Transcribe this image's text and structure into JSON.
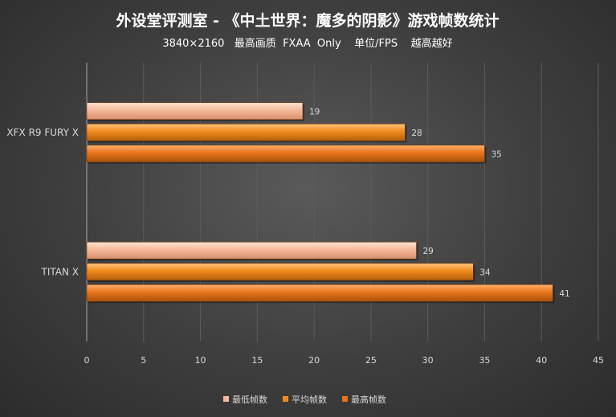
{
  "chart_data": {
    "type": "bar",
    "orientation": "horizontal",
    "title": "外设堂评测室 - 《中土世界：魔多的阴影》游戏帧数统计",
    "subtitle": "3840×2160   最高画质  FXAA  Only    单位/FPS    越高越好",
    "categories": [
      "XFX R9 FURY X",
      "TITAN X"
    ],
    "series": [
      {
        "name": "最低帧数",
        "values": [
          19,
          29
        ],
        "color": "#f4b99a"
      },
      {
        "name": "平均帧数",
        "values": [
          28,
          34
        ],
        "color": "#f08a1c"
      },
      {
        "name": "最高帧数",
        "values": [
          35,
          41
        ],
        "color": "#e8731a"
      }
    ],
    "xlim": [
      0,
      45
    ],
    "xticks": [
      0,
      5,
      10,
      15,
      20,
      25,
      30,
      35,
      40,
      45
    ],
    "grid": true,
    "legend_position": "bottom"
  }
}
